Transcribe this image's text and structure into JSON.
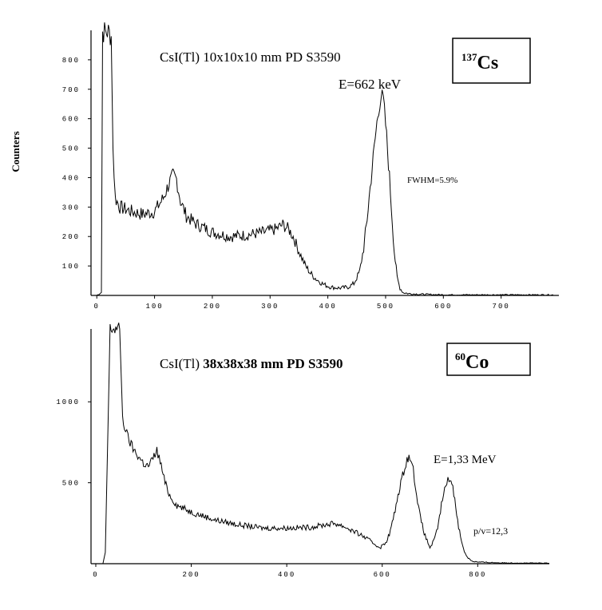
{
  "ylabel": "Counters",
  "chart_data": [
    {
      "type": "line",
      "title_normal": "CsI(Tl)  10x10x10 mm  PD S3590",
      "title_bold": "",
      "isotope_mass": "137",
      "isotope_symbol": "Cs",
      "annotations": [
        "E=662 keV",
        "FWHM=5.9%"
      ],
      "xlim": [
        -10,
        800
      ],
      "ylim": [
        0,
        900
      ],
      "xticks": [
        0,
        100,
        200,
        300,
        400,
        500,
        600,
        700
      ],
      "yticks": [
        100,
        200,
        300,
        400,
        500,
        600,
        700,
        800
      ],
      "xtick_labels": [
        "0",
        "100",
        "200",
        "300",
        "400",
        "500",
        "600",
        "700"
      ],
      "ytick_labels": [
        "100",
        "200",
        "300",
        "400",
        "500",
        "600",
        "700",
        "800"
      ],
      "series": [
        {
          "x": [
            0,
            8,
            10,
            20,
            25,
            28,
            32,
            40,
            60,
            80,
            100,
            115,
            125,
            132,
            138,
            145,
            155,
            170,
            200,
            230,
            260,
            290,
            310,
            322,
            332,
            340,
            350,
            360,
            370,
            380,
            392,
            405,
            420,
            435,
            445,
            455,
            462,
            468,
            475,
            482,
            488,
            492,
            496,
            500,
            505,
            510,
            515,
            520,
            525,
            530,
            540,
            560,
            600,
            700,
            790
          ],
          "y": [
            0,
            10,
            895,
            895,
            880,
            500,
            330,
            300,
            285,
            275,
            285,
            330,
            380,
            405,
            395,
            320,
            270,
            245,
            215,
            200,
            205,
            215,
            225,
            240,
            225,
            200,
            150,
            105,
            75,
            55,
            38,
            28,
            25,
            28,
            40,
            80,
            160,
            260,
            400,
            530,
            640,
            675,
            660,
            580,
            450,
            300,
            150,
            60,
            25,
            10,
            6,
            4,
            2,
            2,
            2
          ]
        }
      ]
    },
    {
      "type": "line",
      "title_normal": "CsI(Tl) ",
      "title_bold": "38x38x38 mm  PD S3590",
      "isotope_mass": "60",
      "isotope_symbol": "Co",
      "annotations": [
        "E=1,33 MeV",
        "p/v=12,3"
      ],
      "xlim": [
        -10,
        950
      ],
      "ylim": [
        0,
        1450
      ],
      "xticks": [
        0,
        200,
        400,
        600,
        800
      ],
      "yticks": [
        500,
        1000
      ],
      "xtick_labels": [
        "0",
        "200",
        "400",
        "600",
        "800"
      ],
      "ytick_labels": [
        "500",
        "1000"
      ],
      "series": [
        {
          "x": [
            0,
            15,
            20,
            30,
            50,
            53,
            56,
            60,
            65,
            70,
            80,
            90,
            100,
            110,
            120,
            128,
            135,
            145,
            155,
            170,
            200,
            250,
            300,
            350,
            400,
            450,
            480,
            500,
            520,
            540,
            560,
            580,
            595,
            605,
            615,
            625,
            635,
            645,
            652,
            658,
            665,
            672,
            680,
            690,
            700,
            710,
            718,
            726,
            733,
            740,
            746,
            752,
            760,
            768,
            776,
            784,
            790,
            800,
            850,
            950
          ],
          "y": [
            0,
            0,
            70,
            1450,
            1450,
            1200,
            900,
            850,
            800,
            760,
            700,
            660,
            620,
            600,
            650,
            700,
            630,
            500,
            420,
            360,
            320,
            270,
            240,
            220,
            220,
            225,
            240,
            250,
            230,
            200,
            170,
            130,
            100,
            120,
            180,
            300,
            450,
            570,
            650,
            660,
            580,
            430,
            280,
            170,
            100,
            150,
            250,
            400,
            480,
            530,
            500,
            400,
            230,
            110,
            50,
            25,
            15,
            10,
            5,
            3
          ]
        }
      ]
    }
  ]
}
